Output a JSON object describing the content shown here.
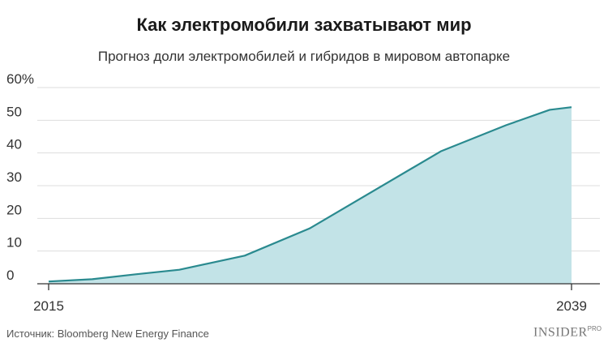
{
  "header": {
    "title": "Как электромобили захватывают мир",
    "subtitle": "Прогноз доли электромобилей и гибридов в мировом автопарке"
  },
  "chart_data": {
    "type": "area",
    "title": "Как электромобили захватывают мир",
    "subtitle": "Прогноз доли электромобилей и гибридов в мировом автопарке",
    "xlabel": "",
    "ylabel": "",
    "x_tick_labels": [
      "2015",
      "2039"
    ],
    "y_tick_labels": [
      "60%",
      "50",
      "40",
      "30",
      "20",
      "10",
      "0"
    ],
    "y_ticks": [
      60,
      50,
      40,
      30,
      20,
      10,
      0
    ],
    "xlim": [
      2015,
      2039
    ],
    "ylim": [
      0,
      60
    ],
    "grid": "horizontal",
    "x": [
      2015,
      2017,
      2019,
      2021,
      2024,
      2027,
      2033,
      2036,
      2038,
      2039
    ],
    "values": [
      0.7,
      1.4,
      2.9,
      4.3,
      8.6,
      17.0,
      40.5,
      48.5,
      53.2,
      54.0
    ],
    "colors": {
      "fill": "#c2e3e7",
      "line": "#2a8a8f",
      "grid": "#dddddd",
      "axis": "#333333"
    }
  },
  "footer": {
    "source": "Источник: Bloomberg New Energy Finance",
    "logo_main": "INSIDER",
    "logo_sup": "PRO"
  }
}
